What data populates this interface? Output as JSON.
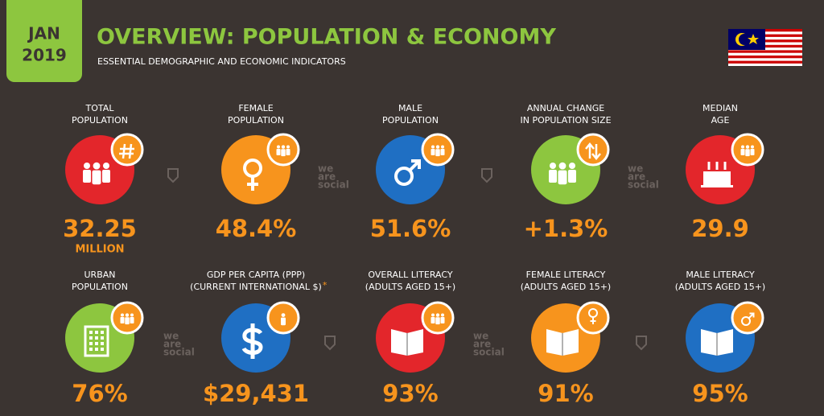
{
  "header": {
    "date": [
      "JAN",
      "2019"
    ],
    "title": "OVERVIEW: POPULATION & ECONOMY",
    "subtitle": "ESSENTIAL DEMOGRAPHIC AND ECONOMIC INDICATORS"
  },
  "watermark": [
    "we",
    "are",
    "social"
  ],
  "items": [
    {
      "label": [
        "TOTAL",
        "POPULATION"
      ],
      "value": "32.25",
      "unit": "MILLION"
    },
    {
      "label": [
        "FEMALE",
        "POPULATION"
      ],
      "value": "48.4%"
    },
    {
      "label": [
        "MALE",
        "POPULATION"
      ],
      "value": "51.6%"
    },
    {
      "label": [
        "ANNUAL CHANGE",
        "IN POPULATION SIZE"
      ],
      "value": "+1.3%"
    },
    {
      "label": [
        "MEDIAN",
        "AGE"
      ],
      "value": "29.9"
    },
    {
      "label": [
        "URBAN",
        "POPULATION"
      ],
      "value": "76%"
    },
    {
      "label": [
        "GDP PER CAPITA (PPP)",
        "(CURRENT INTERNATIONAL $)"
      ],
      "note": "*",
      "value": "$29,431"
    },
    {
      "label": [
        "OVERALL LITERACY",
        "(ADULTS AGED 15+)"
      ],
      "value": "93%"
    },
    {
      "label": [
        "FEMALE LITERACY",
        "(ADULTS AGED 15+)"
      ],
      "value": "91%"
    },
    {
      "label": [
        "MALE LITERACY",
        "(ADULTS AGED 15+)"
      ],
      "value": "95%"
    }
  ]
}
